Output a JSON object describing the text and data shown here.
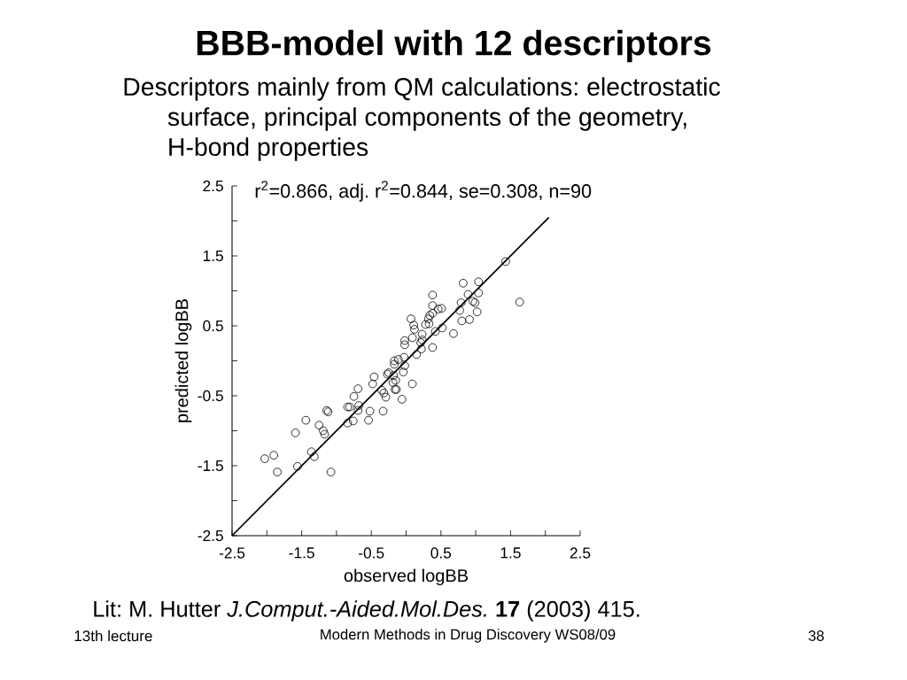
{
  "chart_data": {
    "type": "scatter",
    "title": "BBB-model with 12 descriptors",
    "subtitle": "Descriptors mainly from QM calculations: electrostatic surface, principal components of the geometry, H-bond properties",
    "xlabel": "observed logBB",
    "ylabel": "predicted logBB",
    "annotations": [
      "r$^{2}$=0.866, adj. r$^{2}$=0.844, se=0.308, n=90",
      "Lit: M. Hutter *J.Comput.-Aided.Mol.Des.* **17** (2003) 415.",
      "13th lecture",
      "Modern Methods in Drug Discovery WS08/09",
      "38"
    ],
    "xlim": [
      -2.5,
      2.5
    ],
    "ylim": [
      -2.5,
      2.5
    ],
    "xticks": [
      -2.5,
      {
        "value": -2,
        "label": null
      },
      -1.5,
      {
        "value": -1,
        "label": null
      },
      -0.5,
      {
        "value": 0,
        "label": null
      },
      0.5,
      {
        "value": 1,
        "label": null
      },
      1.5,
      {
        "value": 2,
        "label": null
      },
      2.5
    ],
    "yticks": [
      -2.5,
      {
        "value": -2,
        "label": null
      },
      -1.5,
      {
        "value": -1,
        "label": null
      },
      -0.5,
      {
        "value": 0,
        "label": null
      },
      0.5,
      {
        "value": 1,
        "label": null
      },
      1.5,
      {
        "value": 2,
        "label": null
      },
      2.5
    ],
    "marker": "circle",
    "series": [
      {
        "color": "#000000",
        "x": [
          1.43,
          0.82,
          1.04,
          0.38,
          0.89,
          1.04,
          0.96,
          0.99,
          1.63,
          0.38,
          0.79,
          0.51,
          0.46,
          0.38,
          0.77,
          1.02,
          0.34,
          0.32,
          0.07,
          0.8,
          0.91,
          0.28,
          0.33,
          0.11,
          0.12,
          0.52,
          0.68,
          0.42,
          0.23,
          0.09,
          -0.02,
          -0.02,
          0.23,
          0.21,
          0.38,
          0.22,
          0.15,
          -0.03,
          -0.11,
          -0.17,
          -0.17,
          -0.02,
          -0.04,
          -0.25,
          -0.27,
          -0.18,
          -0.15,
          -0.19,
          -0.46,
          -0.48,
          0.09,
          -0.69,
          -0.35,
          -0.32,
          -0.16,
          -0.14,
          -0.29,
          -0.75,
          -0.06,
          -1.14,
          -1.12,
          -0.84,
          -0.81,
          -0.68,
          -0.69,
          -0.52,
          -0.33,
          -1.44,
          -1.25,
          -1.19,
          -1.17,
          -0.84,
          -0.76,
          -0.54,
          -1.59,
          -1.36,
          -1.32,
          -1.9,
          -2.03,
          -1.56,
          -1.85,
          -1.08
        ],
        "values": [
          1.42,
          1.11,
          1.13,
          0.94,
          0.95,
          0.97,
          0.85,
          0.83,
          0.84,
          0.79,
          0.83,
          0.75,
          0.74,
          0.68,
          0.72,
          0.7,
          0.65,
          0.6,
          0.6,
          0.57,
          0.59,
          0.52,
          0.53,
          0.51,
          0.45,
          0.47,
          0.39,
          0.42,
          0.38,
          0.33,
          0.29,
          0.23,
          0.3,
          0.26,
          0.19,
          0.17,
          0.09,
          0.05,
          0.02,
          0.0,
          -0.05,
          -0.07,
          -0.16,
          -0.17,
          -0.19,
          -0.21,
          -0.28,
          -0.31,
          -0.23,
          -0.33,
          -0.33,
          -0.4,
          -0.42,
          -0.46,
          -0.41,
          -0.41,
          -0.52,
          -0.51,
          -0.55,
          -0.71,
          -0.73,
          -0.66,
          -0.66,
          -0.64,
          -0.71,
          -0.72,
          -0.72,
          -0.85,
          -0.92,
          -1.0,
          -1.05,
          -0.89,
          -0.86,
          -0.85,
          -1.03,
          -1.3,
          -1.37,
          -1.35,
          -1.4,
          -1.51,
          -1.59,
          -1.59
        ]
      },
      {
        "type": "line",
        "color": "#000000",
        "marker": "none",
        "line_style": "solid",
        "x": [
          -2.5,
          2.05
        ],
        "values": [
          -2.5,
          2.05
        ]
      }
    ]
  }
}
